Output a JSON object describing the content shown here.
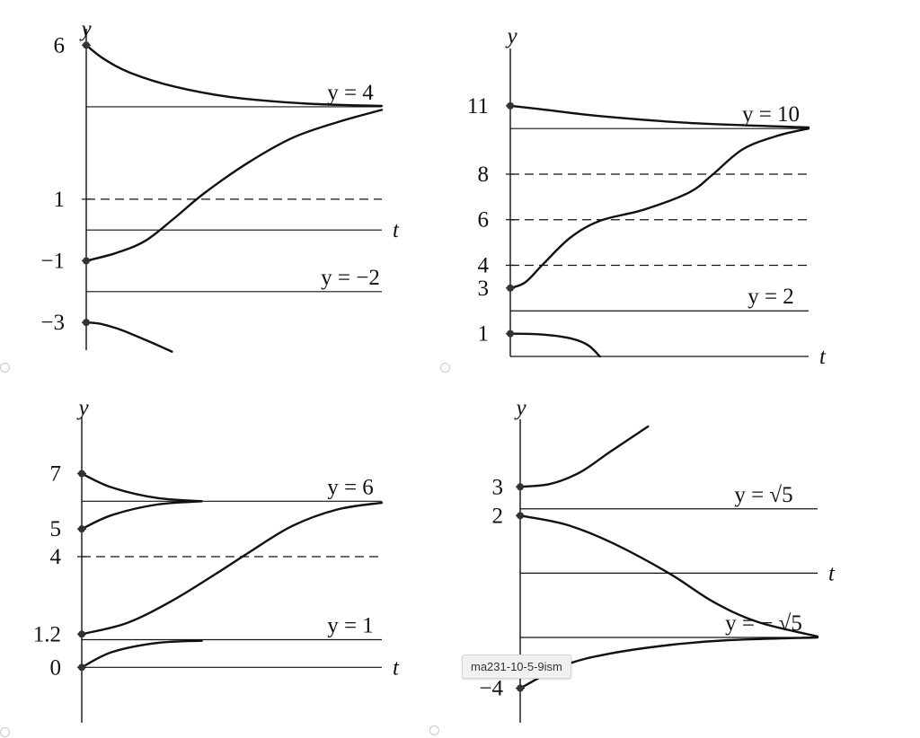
{
  "colors": {
    "ink": "#111111",
    "background": "#ffffff",
    "accent_line": "#6a5a8a"
  },
  "tooltip": "ma231-10-5-9ism",
  "chart_data": [
    {
      "type": "line",
      "panel": "top-left",
      "xlabel": "t",
      "ylabel": "y",
      "ylim": [
        -3.9,
        6.3
      ],
      "yticks": [
        {
          "v": 6,
          "label": "6"
        },
        {
          "v": 1,
          "label": "1"
        },
        {
          "v": -1,
          "label": "−1"
        },
        {
          "v": -3,
          "label": "−3"
        }
      ],
      "t_axis_at": 0,
      "equilibria": [
        {
          "v": 4,
          "label": "y = 4",
          "style": "solid"
        },
        {
          "v": 1,
          "label": "",
          "style": "dashed"
        },
        {
          "v": -2,
          "label": "y = −2",
          "style": "solid"
        }
      ],
      "curves": [
        [
          [
            0,
            6
          ],
          [
            0.06,
            5.55
          ],
          [
            0.15,
            5.1
          ],
          [
            0.3,
            4.65
          ],
          [
            0.5,
            4.3
          ],
          [
            0.75,
            4.1
          ],
          [
            1,
            4.03
          ]
        ],
        [
          [
            0,
            -1
          ],
          [
            0.1,
            -0.75
          ],
          [
            0.2,
            -0.35
          ],
          [
            0.3,
            0.4
          ],
          [
            0.4,
            1.2
          ],
          [
            0.55,
            2.2
          ],
          [
            0.7,
            3.0
          ],
          [
            0.85,
            3.5
          ],
          [
            1,
            3.9
          ]
        ],
        [
          [
            0,
            -3
          ],
          [
            0.05,
            -3.05
          ],
          [
            0.12,
            -3.25
          ],
          [
            0.22,
            -3.65
          ],
          [
            0.29,
            -3.95
          ]
        ]
      ],
      "initial_points": [
        6,
        -1,
        -3
      ]
    },
    {
      "type": "line",
      "panel": "top-right",
      "xlabel": "t",
      "ylabel": "y",
      "ylim": [
        0,
        13.2
      ],
      "yticks": [
        {
          "v": 11,
          "label": "11"
        },
        {
          "v": 8,
          "label": "8"
        },
        {
          "v": 6,
          "label": "6"
        },
        {
          "v": 4,
          "label": "4"
        },
        {
          "v": 3,
          "label": "3"
        },
        {
          "v": 1,
          "label": "1"
        }
      ],
      "t_axis_at": 0,
      "equilibria": [
        {
          "v": 10,
          "label": "y = 10",
          "style": "solid"
        },
        {
          "v": 8,
          "label": "",
          "style": "dashed"
        },
        {
          "v": 6,
          "label": "",
          "style": "dashed"
        },
        {
          "v": 4,
          "label": "",
          "style": "dashed"
        },
        {
          "v": 2,
          "label": "y = 2",
          "style": "solid"
        }
      ],
      "curves": [
        [
          [
            0,
            11
          ],
          [
            0.1,
            10.85
          ],
          [
            0.3,
            10.55
          ],
          [
            0.6,
            10.25
          ],
          [
            1,
            10.05
          ]
        ],
        [
          [
            0,
            3
          ],
          [
            0.05,
            3.25
          ],
          [
            0.11,
            4.05
          ],
          [
            0.2,
            5.2
          ],
          [
            0.3,
            5.95
          ],
          [
            0.45,
            6.45
          ],
          [
            0.6,
            7.2
          ],
          [
            0.68,
            8
          ],
          [
            0.78,
            9.1
          ],
          [
            0.9,
            9.7
          ],
          [
            1,
            10
          ]
        ],
        [
          [
            0,
            1
          ],
          [
            0.1,
            0.97
          ],
          [
            0.2,
            0.8
          ],
          [
            0.26,
            0.5
          ],
          [
            0.3,
            0
          ]
        ]
      ],
      "initial_points": [
        11,
        3,
        1
      ]
    },
    {
      "type": "line",
      "panel": "bottom-left",
      "xlabel": "t",
      "ylabel": "y",
      "ylim": [
        -2,
        8.8
      ],
      "yticks": [
        {
          "v": 7,
          "label": "7"
        },
        {
          "v": 5,
          "label": "5"
        },
        {
          "v": 4,
          "label": "4"
        },
        {
          "v": 1.2,
          "label": "1.2"
        },
        {
          "v": 0,
          "label": "0"
        }
      ],
      "t_axis_at": 0,
      "equilibria": [
        {
          "v": 6,
          "label": "y = 6",
          "style": "solid"
        },
        {
          "v": 4,
          "label": "",
          "style": "dashed"
        },
        {
          "v": 1,
          "label": "y = 1",
          "style": "solid"
        }
      ],
      "curves": [
        [
          [
            0,
            7
          ],
          [
            0.1,
            6.5
          ],
          [
            0.25,
            6.12
          ],
          [
            0.4,
            6
          ]
        ],
        [
          [
            0,
            5
          ],
          [
            0.1,
            5.5
          ],
          [
            0.25,
            5.88
          ],
          [
            0.4,
            6
          ]
        ],
        [
          [
            0,
            1.2
          ],
          [
            0.15,
            1.6
          ],
          [
            0.3,
            2.4
          ],
          [
            0.45,
            3.4
          ],
          [
            0.55,
            4.1
          ],
          [
            0.7,
            5.1
          ],
          [
            0.85,
            5.7
          ],
          [
            1,
            5.95
          ]
        ],
        [
          [
            0,
            0
          ],
          [
            0.1,
            0.55
          ],
          [
            0.25,
            0.88
          ],
          [
            0.4,
            0.96
          ]
        ]
      ],
      "initial_points": [
        7,
        5,
        1.2,
        0
      ]
    },
    {
      "type": "line",
      "panel": "bottom-right",
      "xlabel": "t",
      "ylabel": "y",
      "ylim": [
        -5.2,
        5.1
      ],
      "yticks": [
        {
          "v": 3,
          "label": "3"
        },
        {
          "v": 2,
          "label": "2"
        },
        {
          "v": -4,
          "label": "−4"
        }
      ],
      "t_axis_at": 0,
      "equilibria": [
        {
          "v": 2.236,
          "label": "y = √5",
          "style": "solid"
        },
        {
          "v": -2.236,
          "label": "y = − √5",
          "style": "solid"
        }
      ],
      "curves": [
        [
          [
            0,
            3
          ],
          [
            0.1,
            3.1
          ],
          [
            0.2,
            3.5
          ],
          [
            0.3,
            4.2
          ],
          [
            0.43,
            5.1
          ]
        ],
        [
          [
            0,
            2
          ],
          [
            0.15,
            1.7
          ],
          [
            0.3,
            1.1
          ],
          [
            0.5,
            0
          ],
          [
            0.65,
            -1.0
          ],
          [
            0.8,
            -1.7
          ],
          [
            1,
            -2.2
          ]
        ],
        [
          [
            0,
            -4
          ],
          [
            0.15,
            -3.2
          ],
          [
            0.3,
            -2.8
          ],
          [
            0.5,
            -2.5
          ],
          [
            0.7,
            -2.33
          ],
          [
            1,
            -2.236
          ]
        ]
      ],
      "initial_points": [
        3,
        2,
        -4
      ]
    }
  ]
}
